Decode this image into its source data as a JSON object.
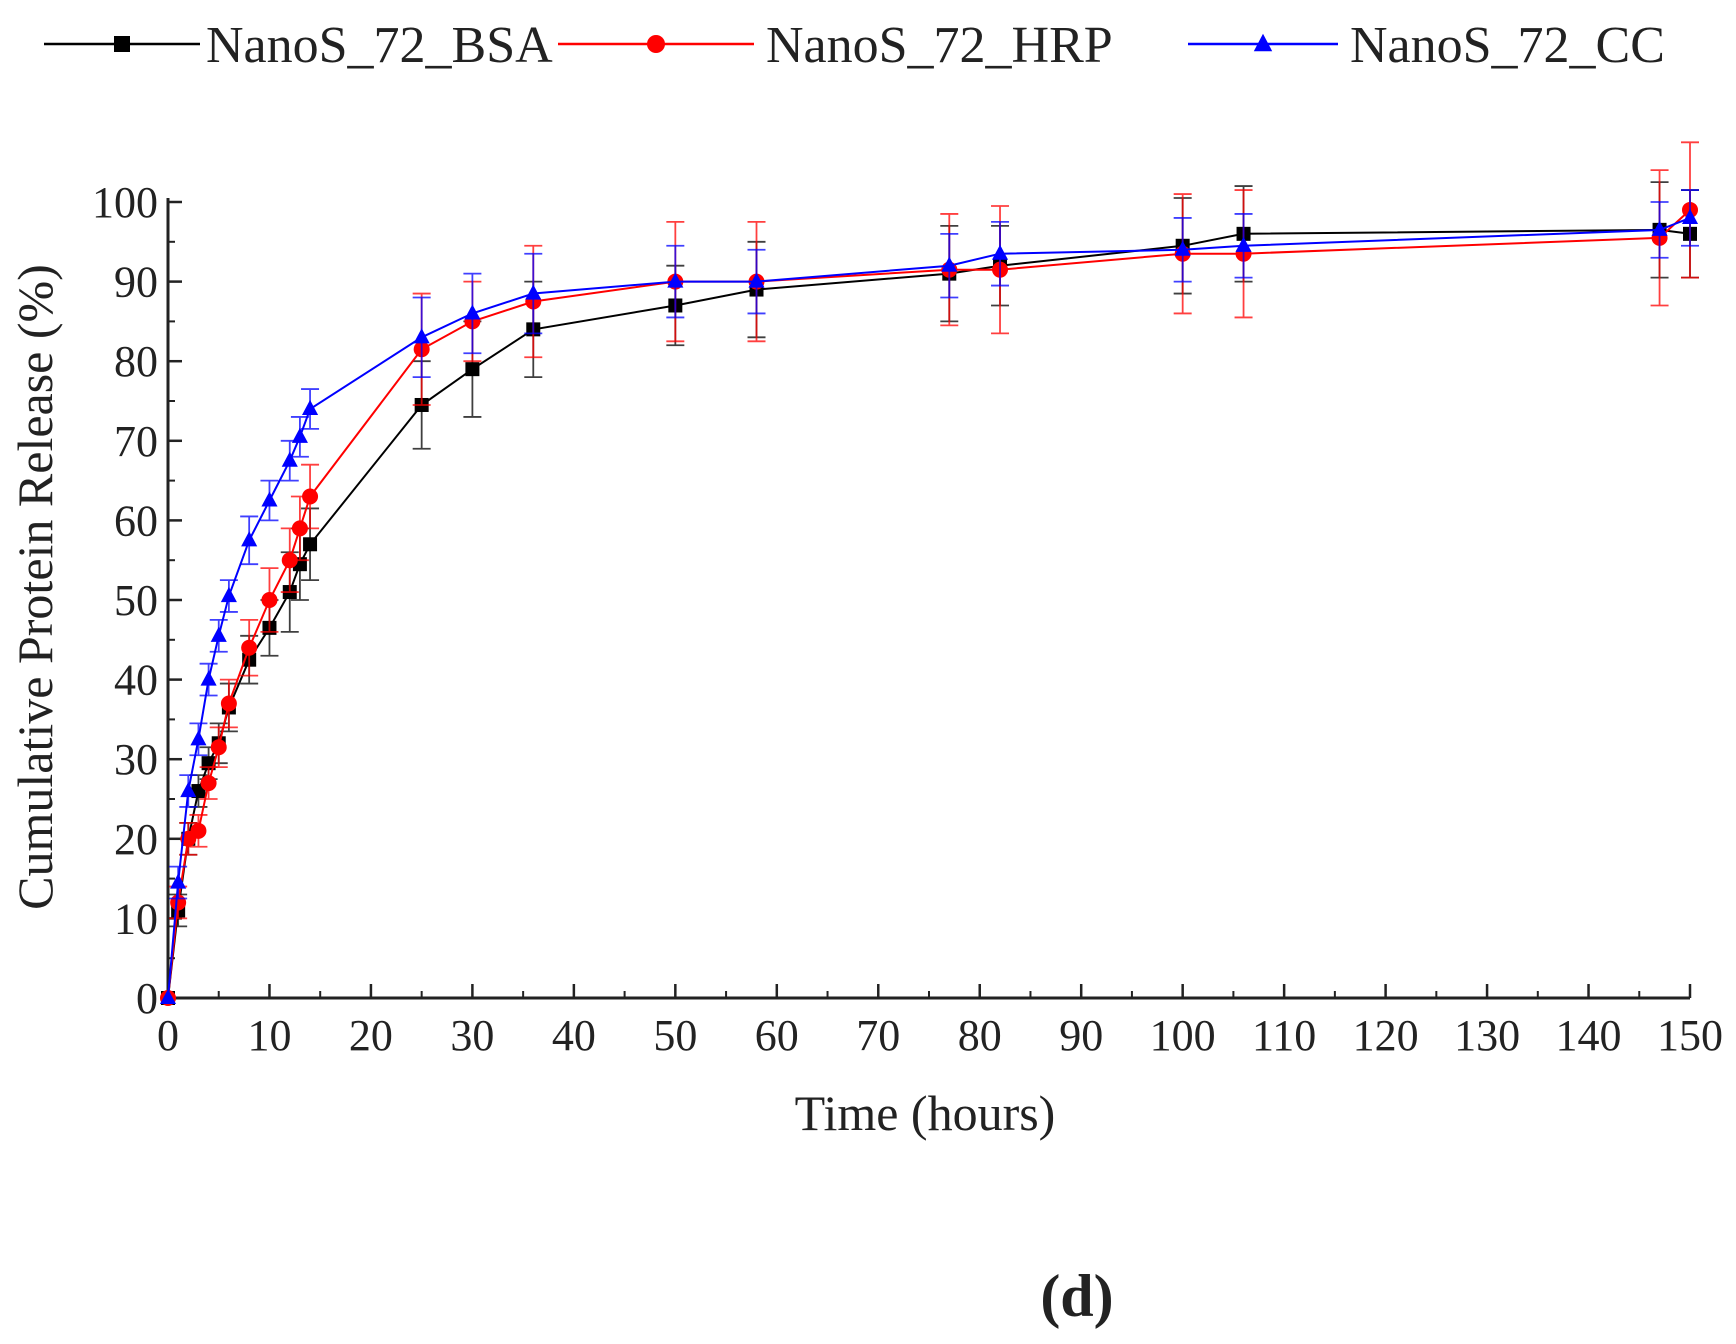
{
  "panel_label": "(d)",
  "chart_data": {
    "type": "line",
    "title": "",
    "xlabel": "Time (hours)",
    "ylabel": "Cumulative Protein Release (%)",
    "xlim": [
      0,
      150
    ],
    "ylim": [
      0,
      100
    ],
    "x_ticks": [
      0,
      10,
      20,
      30,
      40,
      50,
      60,
      70,
      80,
      90,
      100,
      110,
      120,
      130,
      140,
      150
    ],
    "y_ticks": [
      0,
      10,
      20,
      30,
      40,
      50,
      60,
      70,
      80,
      90,
      100
    ],
    "grid": false,
    "legend_position": "top",
    "series": [
      {
        "name": "NanoS_72_BSA",
        "color": "#000000",
        "marker": "square",
        "points": [
          {
            "x": 0,
            "y": 0,
            "err": 0
          },
          {
            "x": 1,
            "y": 11,
            "err": 2
          },
          {
            "x": 2,
            "y": 20,
            "err": 2
          },
          {
            "x": 3,
            "y": 26,
            "err": 2
          },
          {
            "x": 4,
            "y": 29.5,
            "err": 2
          },
          {
            "x": 5,
            "y": 32,
            "err": 2.5
          },
          {
            "x": 6,
            "y": 36.5,
            "err": 3
          },
          {
            "x": 8,
            "y": 42.5,
            "err": 3
          },
          {
            "x": 10,
            "y": 46.5,
            "err": 3.5
          },
          {
            "x": 12,
            "y": 51,
            "err": 5
          },
          {
            "x": 13,
            "y": 54.5,
            "err": 4.5
          },
          {
            "x": 14,
            "y": 57,
            "err": 4.5
          },
          {
            "x": 25,
            "y": 74.5,
            "err": 5.5
          },
          {
            "x": 30,
            "y": 79,
            "err": 6
          },
          {
            "x": 36,
            "y": 84,
            "err": 6
          },
          {
            "x": 50,
            "y": 87,
            "err": 5
          },
          {
            "x": 58,
            "y": 89,
            "err": 6
          },
          {
            "x": 77,
            "y": 91,
            "err": 6
          },
          {
            "x": 82,
            "y": 92,
            "err": 5
          },
          {
            "x": 100,
            "y": 94.5,
            "err": 6
          },
          {
            "x": 106,
            "y": 96,
            "err": 6
          },
          {
            "x": 147,
            "y": 96.5,
            "err": 6
          },
          {
            "x": 150,
            "y": 96,
            "err": 5.5
          }
        ]
      },
      {
        "name": "NanoS_72_HRP",
        "color": "#ff0000",
        "marker": "circle",
        "points": [
          {
            "x": 0,
            "y": 0,
            "err": 0
          },
          {
            "x": 1,
            "y": 12,
            "err": 2
          },
          {
            "x": 2,
            "y": 20,
            "err": 2
          },
          {
            "x": 3,
            "y": 21,
            "err": 2
          },
          {
            "x": 4,
            "y": 27,
            "err": 2
          },
          {
            "x": 5,
            "y": 31.5,
            "err": 2.5
          },
          {
            "x": 6,
            "y": 37,
            "err": 3
          },
          {
            "x": 8,
            "y": 44,
            "err": 3.5
          },
          {
            "x": 10,
            "y": 50,
            "err": 4
          },
          {
            "x": 12,
            "y": 55,
            "err": 4
          },
          {
            "x": 13,
            "y": 59,
            "err": 4
          },
          {
            "x": 14,
            "y": 63,
            "err": 4
          },
          {
            "x": 25,
            "y": 81.5,
            "err": 7
          },
          {
            "x": 30,
            "y": 85,
            "err": 5
          },
          {
            "x": 36,
            "y": 87.5,
            "err": 7
          },
          {
            "x": 50,
            "y": 90,
            "err": 7.5
          },
          {
            "x": 58,
            "y": 90,
            "err": 7.5
          },
          {
            "x": 77,
            "y": 91.5,
            "err": 7
          },
          {
            "x": 82,
            "y": 91.5,
            "err": 8
          },
          {
            "x": 100,
            "y": 93.5,
            "err": 7.5
          },
          {
            "x": 106,
            "y": 93.5,
            "err": 8
          },
          {
            "x": 147,
            "y": 95.5,
            "err": 8.5
          },
          {
            "x": 150,
            "y": 99,
            "err": 8.5
          }
        ]
      },
      {
        "name": "NanoS_72_CC",
        "color": "#0000ff",
        "marker": "triangle",
        "points": [
          {
            "x": 0,
            "y": 0,
            "err": 0
          },
          {
            "x": 1,
            "y": 14.5,
            "err": 2
          },
          {
            "x": 2,
            "y": 26,
            "err": 2
          },
          {
            "x": 3,
            "y": 32.5,
            "err": 2
          },
          {
            "x": 4,
            "y": 40,
            "err": 2
          },
          {
            "x": 5,
            "y": 45.5,
            "err": 2
          },
          {
            "x": 6,
            "y": 50.5,
            "err": 2
          },
          {
            "x": 8,
            "y": 57.5,
            "err": 3
          },
          {
            "x": 10,
            "y": 62.5,
            "err": 2.5
          },
          {
            "x": 12,
            "y": 67.5,
            "err": 2.5
          },
          {
            "x": 13,
            "y": 70.5,
            "err": 2.5
          },
          {
            "x": 14,
            "y": 74,
            "err": 2.5
          },
          {
            "x": 25,
            "y": 83,
            "err": 5
          },
          {
            "x": 30,
            "y": 86,
            "err": 5
          },
          {
            "x": 36,
            "y": 88.5,
            "err": 5
          },
          {
            "x": 50,
            "y": 90,
            "err": 4.5
          },
          {
            "x": 58,
            "y": 90,
            "err": 4
          },
          {
            "x": 77,
            "y": 92,
            "err": 4
          },
          {
            "x": 82,
            "y": 93.5,
            "err": 4
          },
          {
            "x": 100,
            "y": 94,
            "err": 4
          },
          {
            "x": 106,
            "y": 94.5,
            "err": 4
          },
          {
            "x": 147,
            "y": 96.5,
            "err": 3.5
          },
          {
            "x": 150,
            "y": 98,
            "err": 3.5
          }
        ]
      }
    ]
  }
}
